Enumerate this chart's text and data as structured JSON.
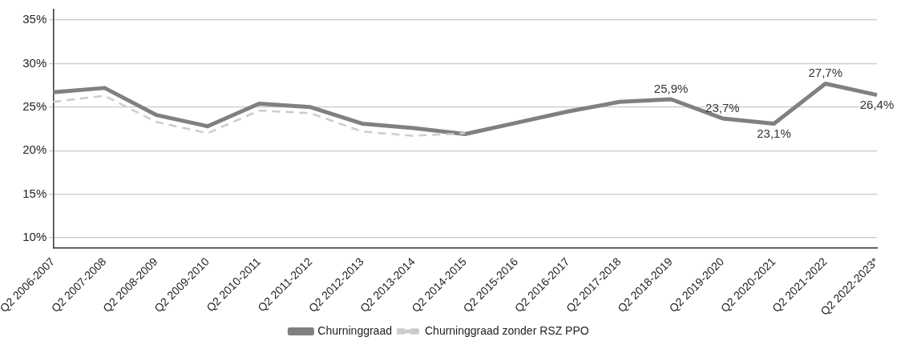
{
  "chart_data": {
    "type": "line",
    "categories": [
      "Q2 2006-2007",
      "Q2 2007-2008",
      "Q2 2008-2009",
      "Q2 2009-2010",
      "Q2 2010-2011",
      "Q2 2011-2012",
      "Q2 2012-2013",
      "Q2 2013-2014",
      "Q2 2014-2015",
      "Q2 2015-2016",
      "Q2 2016-2017",
      "Q2 2017-2018",
      "Q2 2018-2019",
      "Q2 2019-2020",
      "Q2 2020-2021",
      "Q2 2021-2022",
      "Q2 2022-2023*"
    ],
    "series": [
      {
        "name": "Churninggraad",
        "color": "#808080",
        "line_style": "solid",
        "values": [
          26.7,
          27.2,
          24.1,
          22.8,
          25.4,
          25.0,
          23.1,
          22.6,
          21.9,
          23.2,
          24.5,
          25.6,
          25.9,
          23.7,
          23.1,
          27.7,
          26.4
        ],
        "value_labels": [
          null,
          null,
          null,
          null,
          null,
          null,
          null,
          null,
          null,
          null,
          null,
          null,
          "25,9%",
          "23,7%",
          "23,1%",
          "27,7%",
          "26,4%"
        ]
      },
      {
        "name": "Churninggraad zonder RSZ PPO",
        "color": "#cccccc",
        "line_style": "dashed",
        "values": [
          25.6,
          26.3,
          23.3,
          22.0,
          24.6,
          24.3,
          22.2,
          21.7,
          22.0,
          null,
          null,
          null,
          null,
          null,
          null,
          null,
          null
        ]
      }
    ],
    "ylim": [
      8.8,
      36.2
    ],
    "yticks": [
      {
        "value": 10,
        "label": "10%"
      },
      {
        "value": 15,
        "label": "15%"
      },
      {
        "value": 20,
        "label": "20%"
      },
      {
        "value": 25,
        "label": "25%"
      },
      {
        "value": 30,
        "label": "30%"
      },
      {
        "value": 35,
        "label": "35%"
      }
    ],
    "grid": "y",
    "legend": "bottom",
    "marker": "none"
  }
}
